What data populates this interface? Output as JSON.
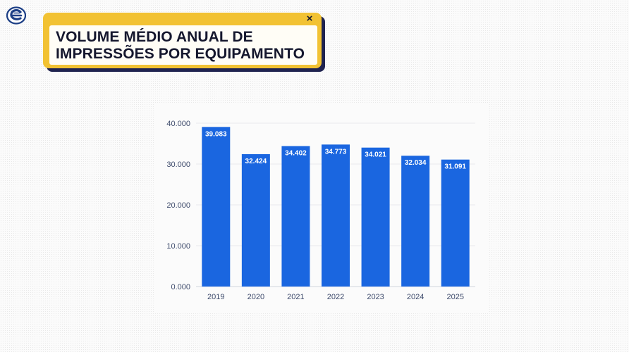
{
  "window": {
    "title_line1": "VOLUME MÉDIO ANUAL DE",
    "title_line2": "IMPRESSÕES POR EQUIPAMENTO",
    "close_glyph": "×"
  },
  "colors": {
    "accent": "#f2c233",
    "navy": "#1f2350",
    "bar": "#1a66e0",
    "axis_text": "#3d4a6b"
  },
  "icons": {
    "logo": "brand-logo-icon",
    "close": "close-icon"
  },
  "chart_data": {
    "type": "bar",
    "categories": [
      "2019",
      "2020",
      "2021",
      "2022",
      "2023",
      "2024",
      "2025"
    ],
    "values": [
      39083,
      32424,
      34402,
      34773,
      34021,
      32034,
      31091
    ],
    "value_labels": [
      "39.083",
      "32.424",
      "34.402",
      "34.773",
      "34.021",
      "32.034",
      "31.091"
    ],
    "yticks": [
      0,
      10000,
      20000,
      30000,
      40000
    ],
    "ytick_labels": [
      "0.000",
      "10.000",
      "20.000",
      "30.000",
      "40.000"
    ],
    "ylim": [
      0,
      40000
    ],
    "grid": true,
    "legend": "none"
  }
}
